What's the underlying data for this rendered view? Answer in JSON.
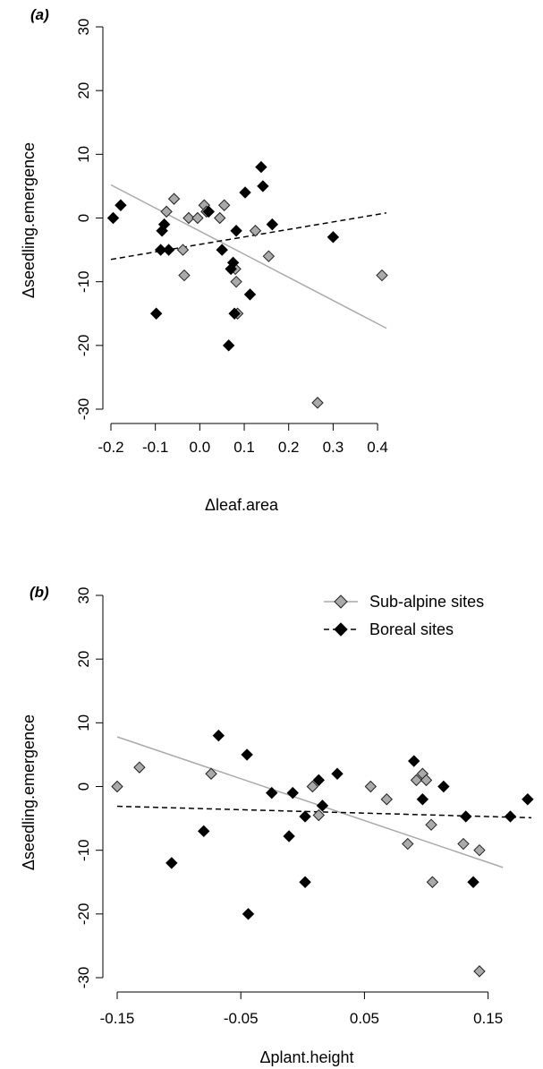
{
  "chart_data": [
    {
      "type": "scatter",
      "panel_label": "(a)",
      "xlabel": "Δleaf.area",
      "ylabel": "Δseedling.emergence",
      "xlim": [
        -0.2,
        0.42
      ],
      "ylim": [
        -30,
        30
      ],
      "xticks": [
        -0.2,
        -0.1,
        0.0,
        0.1,
        0.2,
        0.3,
        0.4
      ],
      "xtick_labels": [
        "-0.2",
        "-0.1",
        "0.0",
        "0.1",
        "0.2",
        "0.3",
        "0.4"
      ],
      "yticks": [
        -30,
        -20,
        -10,
        0,
        10,
        20,
        30
      ],
      "ytick_labels": [
        "-30",
        "-20",
        "-10",
        "0",
        "10",
        "20",
        "30"
      ],
      "series": [
        {
          "name": "Sub-alpine sites",
          "color": "#aaaaaa",
          "marker": "diamond",
          "line_style": "solid",
          "points": [
            [
              -0.058,
              3
            ],
            [
              -0.075,
              1
            ],
            [
              -0.038,
              -5
            ],
            [
              -0.035,
              -9
            ],
            [
              -0.025,
              0
            ],
            [
              -0.005,
              0
            ],
            [
              0.01,
              2
            ],
            [
              0.015,
              1
            ],
            [
              0.045,
              0
            ],
            [
              0.055,
              2
            ],
            [
              0.08,
              -8
            ],
            [
              0.082,
              -10
            ],
            [
              0.085,
              -15
            ],
            [
              0.125,
              -2
            ],
            [
              0.155,
              -6
            ],
            [
              0.265,
              -29
            ],
            [
              0.41,
              -9
            ]
          ],
          "fit_line": [
            [
              -0.2,
              5.2
            ],
            [
              0.42,
              -17.3
            ]
          ]
        },
        {
          "name": "Boreal sites",
          "color": "#000000",
          "marker": "diamond",
          "line_style": "dashed",
          "points": [
            [
              -0.195,
              0
            ],
            [
              -0.178,
              2
            ],
            [
              -0.098,
              -15
            ],
            [
              -0.088,
              -5
            ],
            [
              -0.085,
              -2
            ],
            [
              -0.08,
              -1
            ],
            [
              -0.07,
              -5
            ],
            [
              0.02,
              1
            ],
            [
              0.05,
              -5
            ],
            [
              0.065,
              -20
            ],
            [
              0.07,
              -8
            ],
            [
              0.075,
              -7
            ],
            [
              0.078,
              -15
            ],
            [
              0.082,
              -2
            ],
            [
              0.102,
              4
            ],
            [
              0.113,
              -12
            ],
            [
              0.138,
              8
            ],
            [
              0.142,
              5
            ],
            [
              0.163,
              -1
            ],
            [
              0.3,
              -3
            ]
          ],
          "fit_line": [
            [
              -0.2,
              -6.5
            ],
            [
              0.42,
              0.8
            ]
          ]
        }
      ]
    },
    {
      "type": "scatter",
      "panel_label": "(b)",
      "xlabel": "Δplant.height",
      "ylabel": "Δseedling.emergence",
      "xlim": [
        -0.15,
        0.185
      ],
      "ylim": [
        -30,
        30
      ],
      "xticks": [
        -0.15,
        -0.05,
        0.05,
        0.15
      ],
      "xtick_labels": [
        "-0.15",
        "-0.05",
        "0.05",
        "0.15"
      ],
      "yticks": [
        -30,
        -20,
        -10,
        0,
        10,
        20,
        30
      ],
      "ytick_labels": [
        "-30",
        "-20",
        "-10",
        "0",
        "10",
        "20",
        "30"
      ],
      "legend": {
        "position": "top-right",
        "entries": [
          "Sub-alpine sites",
          "Boreal sites"
        ]
      },
      "series": [
        {
          "name": "Sub-alpine sites",
          "color": "#aaaaaa",
          "marker": "diamond",
          "line_style": "solid",
          "points": [
            [
              -0.15,
              0
            ],
            [
              -0.132,
              3
            ],
            [
              -0.074,
              2
            ],
            [
              0.008,
              0
            ],
            [
              0.013,
              -4.5
            ],
            [
              0.055,
              0
            ],
            [
              0.068,
              -2
            ],
            [
              0.085,
              -9
            ],
            [
              0.092,
              1
            ],
            [
              0.097,
              2
            ],
            [
              0.1,
              1
            ],
            [
              0.104,
              -6
            ],
            [
              0.105,
              -15
            ],
            [
              0.13,
              -9
            ],
            [
              0.143,
              -10
            ],
            [
              0.143,
              -29
            ]
          ],
          "fit_line": [
            [
              -0.15,
              7.8
            ],
            [
              0.162,
              -12.7
            ]
          ]
        },
        {
          "name": "Boreal sites",
          "color": "#000000",
          "marker": "diamond",
          "line_style": "dashed",
          "points": [
            [
              -0.106,
              -12
            ],
            [
              -0.08,
              -7
            ],
            [
              -0.068,
              8
            ],
            [
              -0.045,
              5
            ],
            [
              -0.044,
              -20
            ],
            [
              -0.025,
              -1
            ],
            [
              -0.011,
              -7.8
            ],
            [
              -0.008,
              -1
            ],
            [
              0.002,
              -4.7
            ],
            [
              0.002,
              -15
            ],
            [
              0.013,
              1
            ],
            [
              0.016,
              -3
            ],
            [
              0.028,
              2
            ],
            [
              0.09,
              4
            ],
            [
              0.097,
              -2
            ],
            [
              0.114,
              0
            ],
            [
              0.132,
              -4.7
            ],
            [
              0.138,
              -15
            ],
            [
              0.168,
              -4.7
            ],
            [
              0.182,
              -2
            ]
          ],
          "fit_line": [
            [
              -0.15,
              -3.1
            ],
            [
              0.185,
              -4.9
            ]
          ]
        }
      ]
    }
  ]
}
